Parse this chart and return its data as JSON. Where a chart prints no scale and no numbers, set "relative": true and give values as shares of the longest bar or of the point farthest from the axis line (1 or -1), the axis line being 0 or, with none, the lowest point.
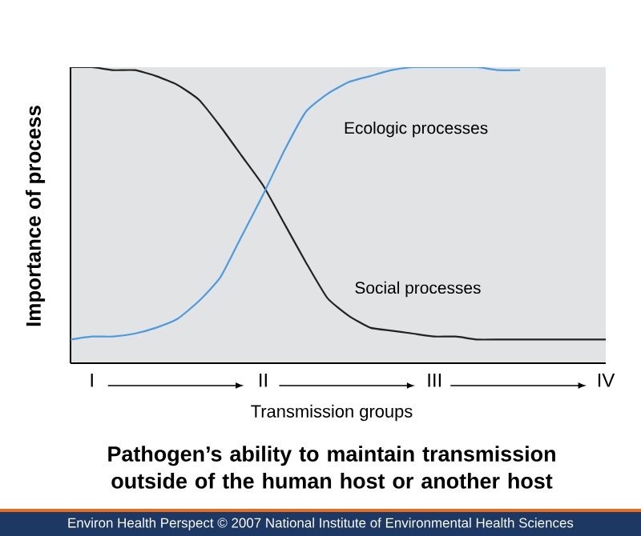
{
  "chart_data": {
    "type": "line",
    "relative": true,
    "title": "Pathogen’s ability to maintain transmission outside of the human host or another host",
    "xlabel": "Transmission groups",
    "ylabel": "Importance of process",
    "annotations": [
      "Environ Health Perspect © 2007 National Institute of Environmental Health Sciences"
    ],
    "categories": [
      null,
      "I",
      null,
      null,
      null,
      null,
      null,
      null,
      null,
      "II",
      null,
      null,
      null,
      null,
      null,
      null,
      null,
      "III",
      null,
      null,
      null,
      null,
      null,
      null,
      null,
      "IV"
    ],
    "legend": false,
    "grid": false,
    "marker": "none",
    "line_style": "solid",
    "series": [
      {
        "name": "Social processes",
        "color": "#222222",
        "values": [
          1.0,
          1.0,
          0.99,
          0.99,
          0.97,
          0.94,
          0.89,
          0.8,
          0.7,
          0.6,
          0.47,
          0.34,
          0.22,
          0.16,
          0.12,
          0.11,
          0.1,
          0.09,
          0.09,
          0.08,
          0.08,
          0.08,
          0.08,
          0.08,
          0.08,
          0.08
        ]
      },
      {
        "name": "Ecologic processes",
        "color": "#4a9be0",
        "values": [
          0.08,
          0.09,
          0.09,
          0.1,
          0.12,
          0.15,
          0.21,
          0.29,
          0.43,
          0.57,
          0.72,
          0.85,
          0.91,
          0.95,
          0.97,
          0.99,
          1.0,
          1.0,
          1.0,
          1.0,
          0.99,
          0.99,
          null,
          null,
          null,
          null
        ]
      }
    ]
  }
}
